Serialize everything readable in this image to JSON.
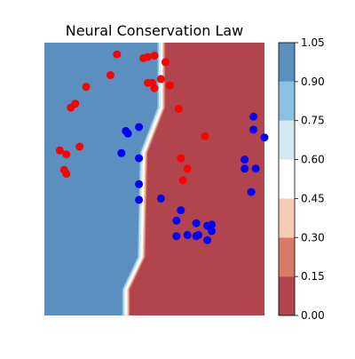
{
  "chart_data": {
    "type": "scatter",
    "title": "Neural Conservation Law",
    "xlabel": "",
    "ylabel": "",
    "grid": false,
    "axes_visible": false,
    "background": {
      "type": "filled-contour",
      "description_of_regions": "left region ≈1.0 (blue), right region ≈0.0 (red), thin white band at the decision boundary",
      "boundary_x_at_y": [
        [
          0.37,
          -1.05
        ],
        [
          0.37,
          -0.85
        ],
        [
          0.44,
          -0.6
        ],
        [
          0.45,
          0.2
        ],
        [
          0.53,
          0.55
        ],
        [
          0.53,
          1.05
        ]
      ],
      "xlim": [
        0,
        1
      ],
      "ylim": [
        -1.05,
        1.05
      ]
    },
    "colorbar": {
      "levels": [
        0.0,
        0.15,
        0.3,
        0.45,
        0.6,
        0.75,
        0.9,
        1.05
      ],
      "tick_labels": [
        "0.00",
        "0.15",
        "0.30",
        "0.45",
        "0.60",
        "0.75",
        "0.90",
        "1.05"
      ],
      "colors": [
        "#b2444e",
        "#d77a6a",
        "#f6cbb5",
        "#ffffff",
        "#d6e9f3",
        "#8cc2df",
        "#5a8fc0"
      ]
    },
    "series": [
      {
        "color": "#ff0000",
        "points": [
          [
            0.33,
            0.96
          ],
          [
            0.45,
            0.93
          ],
          [
            0.47,
            0.94
          ],
          [
            0.5,
            0.95
          ],
          [
            0.55,
            0.9
          ],
          [
            0.3,
            0.8
          ],
          [
            0.53,
            0.77
          ],
          [
            0.47,
            0.74
          ],
          [
            0.49,
            0.74
          ],
          [
            0.5,
            0.7
          ],
          [
            0.57,
            0.72
          ],
          [
            0.19,
            0.71
          ],
          [
            0.14,
            0.58
          ],
          [
            0.12,
            0.55
          ],
          [
            0.61,
            0.54
          ],
          [
            0.73,
            0.33
          ],
          [
            0.16,
            0.25
          ],
          [
            0.07,
            0.22
          ],
          [
            0.1,
            0.19
          ],
          [
            0.62,
            0.16
          ],
          [
            0.65,
            0.08
          ],
          [
            0.09,
            0.07
          ],
          [
            0.1,
            0.04
          ],
          [
            0.63,
            -0.01
          ]
        ]
      },
      {
        "color": "#0000ff",
        "points": [
          [
            0.95,
            0.48
          ],
          [
            0.95,
            0.38
          ],
          [
            1.0,
            0.32
          ],
          [
            0.43,
            0.4
          ],
          [
            0.37,
            0.37
          ],
          [
            0.38,
            0.35
          ],
          [
            0.35,
            0.2
          ],
          [
            0.43,
            0.16
          ],
          [
            0.91,
            0.15
          ],
          [
            0.91,
            0.08
          ],
          [
            0.96,
            0.08
          ],
          [
            0.43,
            -0.04
          ],
          [
            0.94,
            -0.1
          ],
          [
            0.43,
            -0.16
          ],
          [
            0.53,
            -0.15
          ],
          [
            0.62,
            -0.24
          ],
          [
            0.6,
            -0.32
          ],
          [
            0.69,
            -0.34
          ],
          [
            0.76,
            -0.35
          ],
          [
            0.74,
            -0.36
          ],
          [
            0.76,
            -0.4
          ],
          [
            0.65,
            -0.43
          ],
          [
            0.7,
            -0.43
          ],
          [
            0.6,
            -0.44
          ],
          [
            0.69,
            -0.44
          ],
          [
            0.74,
            -0.47
          ]
        ]
      }
    ]
  }
}
